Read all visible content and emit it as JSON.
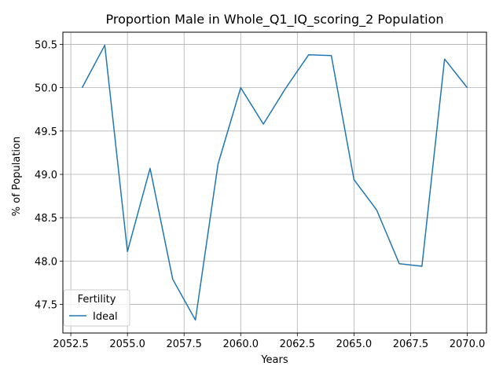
{
  "chart_data": {
    "type": "line",
    "title": "Proportion Male in Whole_Q1_IQ_scoring_2 Population",
    "xlabel": "Years",
    "ylabel": "% of Population",
    "xlim": [
      2052.15,
      2070.85
    ],
    "ylim": [
      47.17,
      50.64
    ],
    "xticks": [
      2052.5,
      2055.0,
      2057.5,
      2060.0,
      2062.5,
      2065.0,
      2067.5,
      2070.0
    ],
    "xtick_labels": [
      "2052.5",
      "2055.0",
      "2057.5",
      "2060.0",
      "2062.5",
      "2065.0",
      "2067.5",
      "2070.0"
    ],
    "yticks": [
      47.5,
      48.0,
      48.5,
      49.0,
      49.5,
      50.0,
      50.5
    ],
    "ytick_labels": [
      "47.5",
      "48.0",
      "48.5",
      "49.0",
      "49.5",
      "50.0",
      "50.5"
    ],
    "grid": true,
    "legend": {
      "title": "Fertility",
      "placement": "lower-left"
    },
    "series": [
      {
        "name": "Ideal",
        "color": "#1f77b4",
        "x": [
          2053,
          2054,
          2055,
          2056,
          2057,
          2058,
          2059,
          2060,
          2061,
          2062,
          2063,
          2064,
          2065,
          2066,
          2067,
          2068,
          2069,
          2070
        ],
        "y": [
          50.0,
          50.49,
          48.11,
          49.07,
          47.79,
          47.32,
          49.12,
          50.0,
          49.58,
          50.0,
          50.38,
          50.37,
          48.94,
          48.59,
          47.97,
          47.94,
          50.33,
          50.0
        ]
      }
    ]
  }
}
